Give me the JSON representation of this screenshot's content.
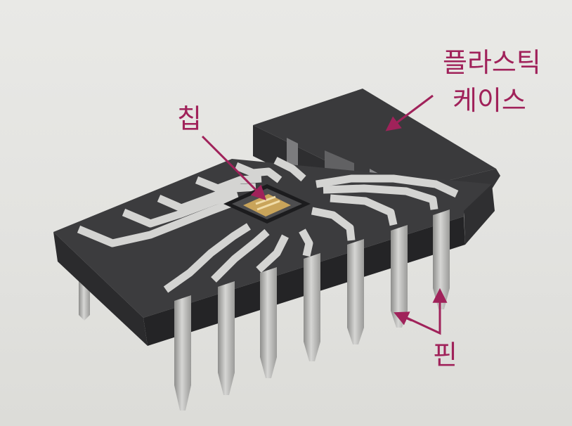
{
  "labels": {
    "chip": "칩",
    "plastic_case_line1": "플라스틱",
    "plastic_case_line2": "케이스",
    "pin": "핀"
  },
  "colors": {
    "background": "#e6e6e3",
    "case_top": "#3d3d3f",
    "case_front": "#2a2a2c",
    "case_side": "#232325",
    "trace": "#d4d4d2",
    "pin": "#c4c4c2",
    "chip": "#c9a45a",
    "annotation": "#a0225a"
  },
  "icons": {
    "callout_arrow": "arrow-icon"
  }
}
